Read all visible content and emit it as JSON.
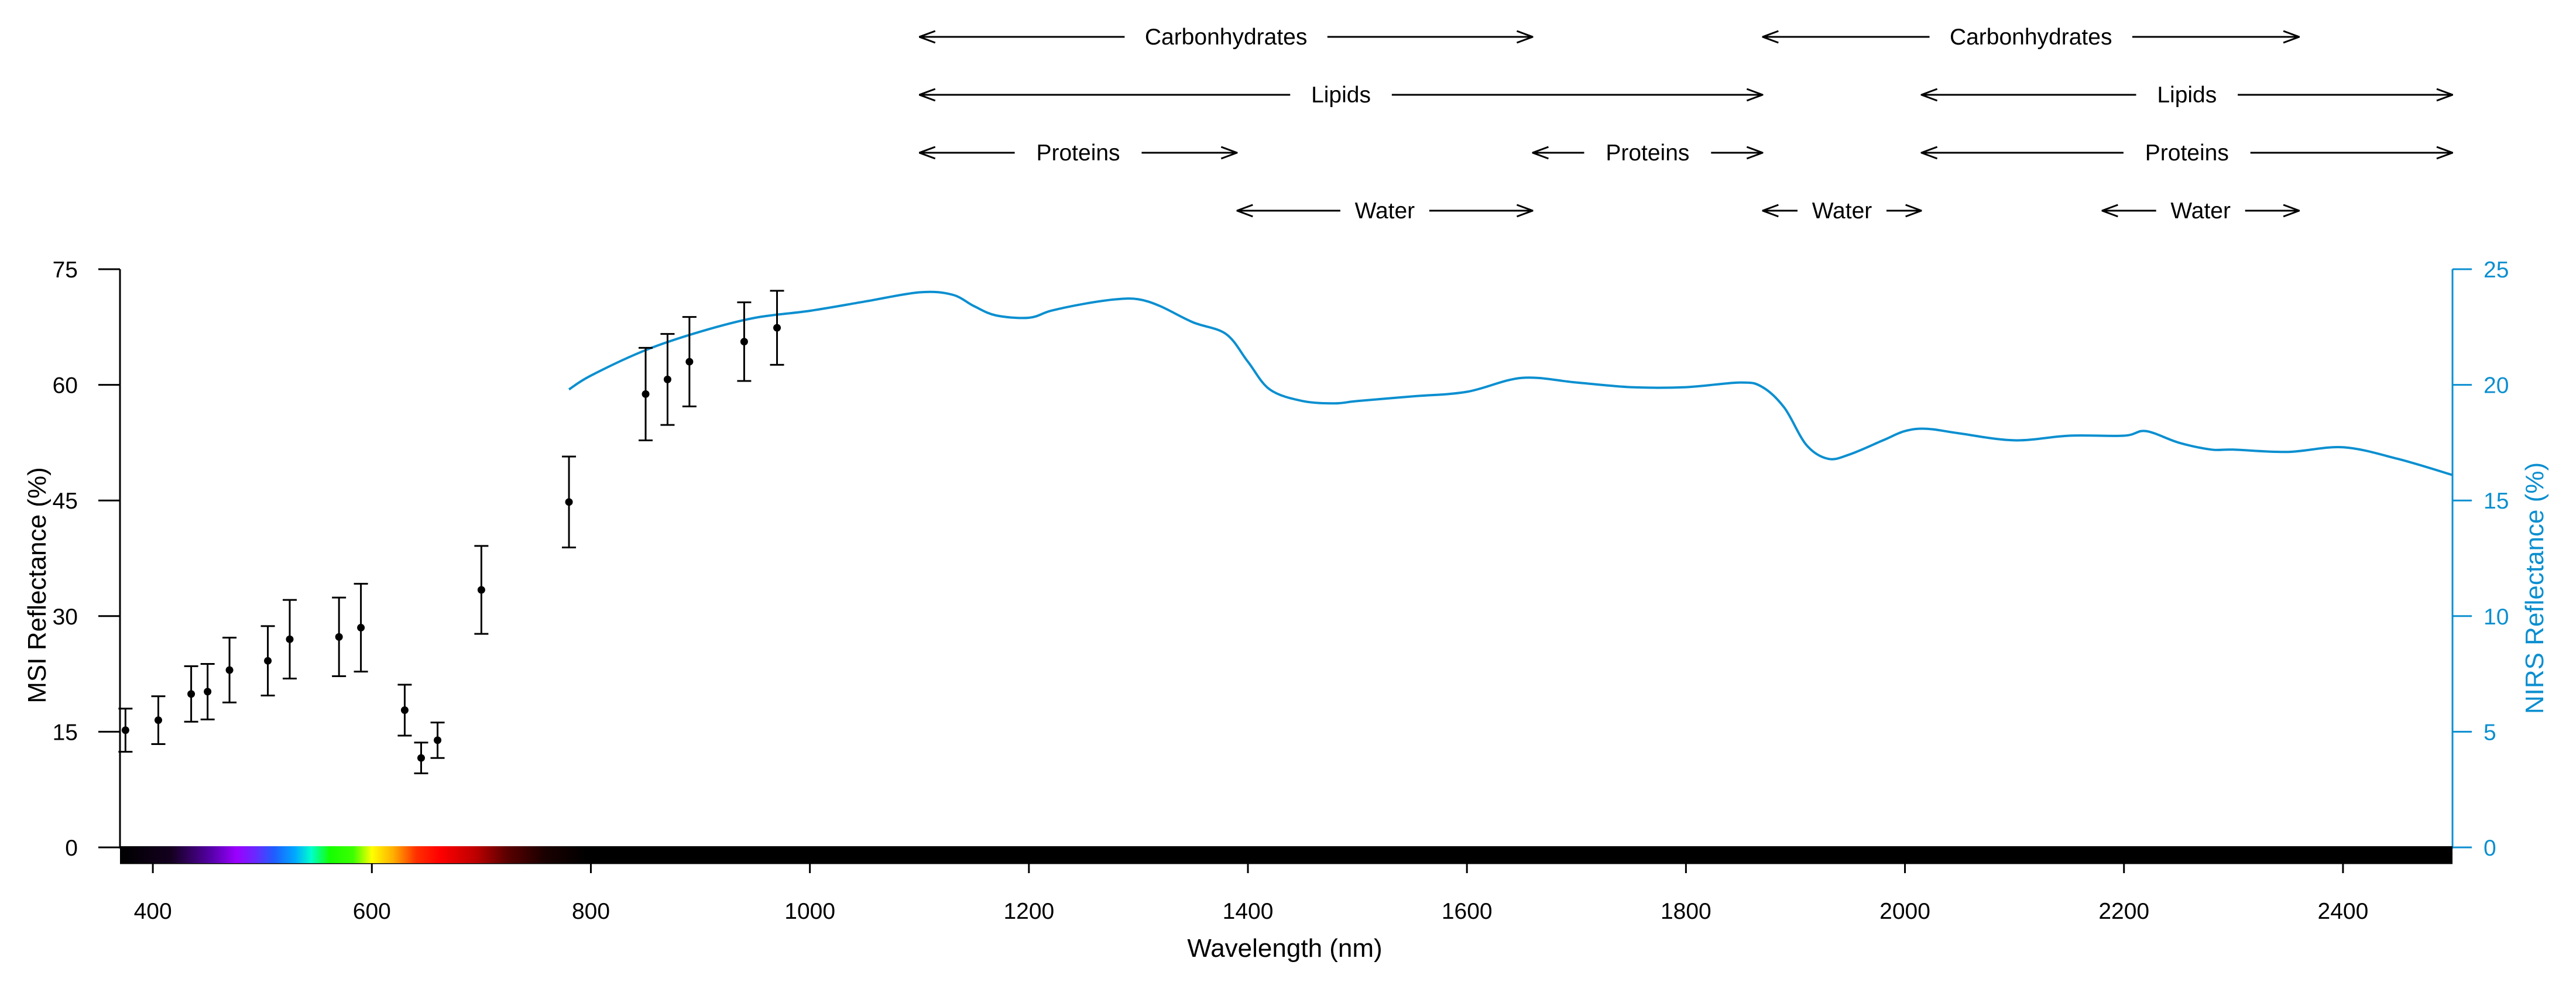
{
  "chart_data": {
    "type": "scatter",
    "xlabel": "Wavelength (nm)",
    "ylabel_left": "MSI Reflectance (%)",
    "ylabel_right": "NIRS Reflectance (%)",
    "xlim": [
      370,
      2500
    ],
    "ylim_left": [
      0,
      75
    ],
    "ylim_right": [
      0,
      25
    ],
    "x_ticks": [
      400,
      600,
      800,
      1000,
      1200,
      1400,
      1600,
      1800,
      2000,
      2200,
      2400
    ],
    "y_ticks_left": [
      0,
      15,
      30,
      45,
      60,
      75
    ],
    "y_ticks_right": [
      0,
      5,
      10,
      15,
      20,
      25
    ],
    "colors": {
      "msi": "#000000",
      "nirs": "#0b8fd0"
    },
    "grid": false,
    "series": [
      {
        "name": "MSI",
        "axis": "left",
        "style": "points-with-error-bars",
        "points": [
          {
            "x": 375,
            "y": 15.2,
            "err": 2.8
          },
          {
            "x": 405,
            "y": 16.5,
            "err": 3.1
          },
          {
            "x": 435,
            "y": 19.9,
            "err": 3.6
          },
          {
            "x": 450,
            "y": 20.2,
            "err": 3.6
          },
          {
            "x": 470,
            "y": 23.0,
            "err": 4.2
          },
          {
            "x": 505,
            "y": 24.2,
            "err": 4.5
          },
          {
            "x": 525,
            "y": 27.0,
            "err": 5.1
          },
          {
            "x": 570,
            "y": 27.3,
            "err": 5.1
          },
          {
            "x": 590,
            "y": 28.5,
            "err": 5.7
          },
          {
            "x": 630,
            "y": 17.8,
            "err": 3.3
          },
          {
            "x": 645,
            "y": 11.6,
            "err": 2.0
          },
          {
            "x": 660,
            "y": 13.9,
            "err": 2.3
          },
          {
            "x": 700,
            "y": 33.4,
            "err": 5.7
          },
          {
            "x": 780,
            "y": 44.8,
            "err": 5.9
          },
          {
            "x": 850,
            "y": 58.8,
            "err": 6.0
          },
          {
            "x": 870,
            "y": 60.7,
            "err": 5.9
          },
          {
            "x": 890,
            "y": 63.0,
            "err": 5.8
          },
          {
            "x": 940,
            "y": 65.6,
            "err": 5.1
          },
          {
            "x": 970,
            "y": 67.4,
            "err": 4.8
          }
        ]
      },
      {
        "name": "NIRS",
        "axis": "right",
        "style": "line",
        "x": [
          780,
          800,
          850,
          900,
          950,
          1000,
          1050,
          1100,
          1130,
          1150,
          1170,
          1200,
          1220,
          1250,
          1280,
          1300,
          1320,
          1350,
          1380,
          1400,
          1420,
          1450,
          1480,
          1500,
          1550,
          1600,
          1650,
          1700,
          1750,
          1800,
          1850,
          1870,
          1890,
          1910,
          1930,
          1950,
          1980,
          2000,
          2020,
          2050,
          2100,
          2150,
          2200,
          2220,
          2250,
          2280,
          2300,
          2350,
          2400,
          2450,
          2500
        ],
        "y": [
          19.8,
          20.4,
          21.5,
          22.3,
          22.9,
          23.2,
          23.6,
          24.0,
          23.9,
          23.4,
          23.0,
          22.9,
          23.2,
          23.5,
          23.7,
          23.7,
          23.4,
          22.7,
          22.2,
          21.0,
          19.8,
          19.3,
          19.2,
          19.3,
          19.5,
          19.7,
          20.3,
          20.1,
          19.9,
          19.9,
          20.1,
          19.9,
          19.0,
          17.4,
          16.8,
          17.0,
          17.6,
          18.0,
          18.1,
          17.9,
          17.6,
          17.8,
          17.8,
          18.0,
          17.5,
          17.2,
          17.2,
          17.1,
          17.3,
          16.8,
          16.1
        ]
      }
    ],
    "absorption_bands": [
      {
        "label": "Carbonhydrates",
        "row": 0,
        "from": 1100,
        "to": 1660
      },
      {
        "label": "Carbonhydrates",
        "row": 0,
        "from": 1870,
        "to": 2360
      },
      {
        "label": "Lipids",
        "row": 1,
        "from": 1100,
        "to": 1870
      },
      {
        "label": "Lipids",
        "row": 1,
        "from": 2015,
        "to": 2500
      },
      {
        "label": "Proteins",
        "row": 2,
        "from": 1100,
        "to": 1390
      },
      {
        "label": "Proteins",
        "row": 2,
        "from": 1660,
        "to": 1870
      },
      {
        "label": "Proteins",
        "row": 2,
        "from": 2015,
        "to": 2500
      },
      {
        "label": "Water",
        "row": 3,
        "from": 1390,
        "to": 1660
      },
      {
        "label": "Water",
        "row": 3,
        "from": 1870,
        "to": 2015
      },
      {
        "label": "Water",
        "row": 3,
        "from": 2180,
        "to": 2360
      }
    ]
  }
}
